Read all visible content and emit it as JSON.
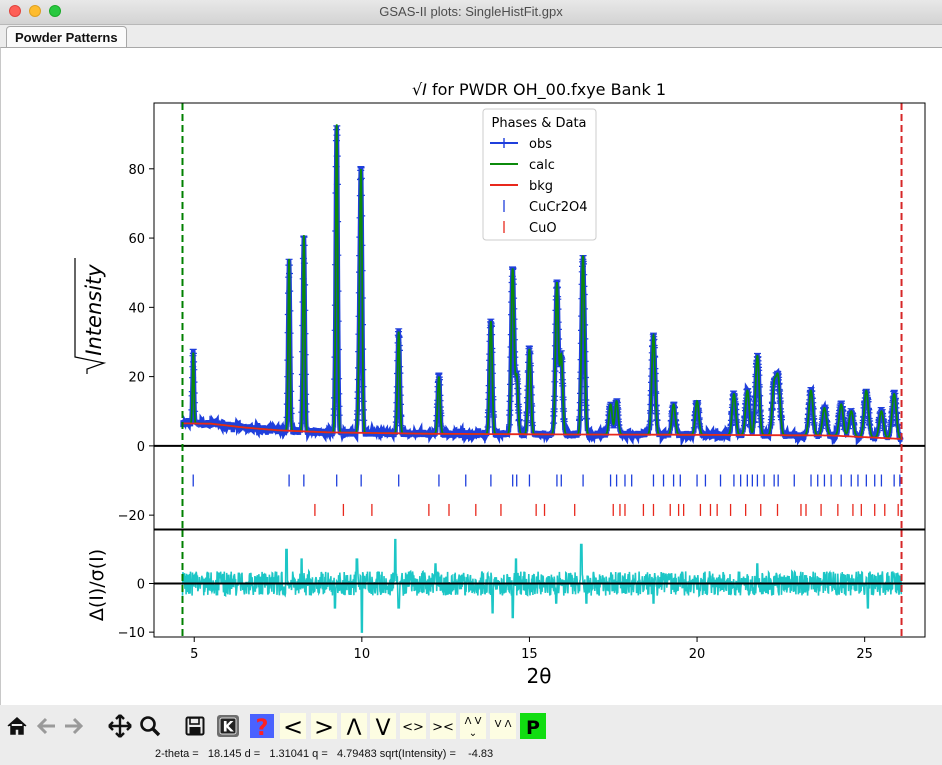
{
  "window": {
    "title": "GSAS-II plots: SingleHistFit.gpx"
  },
  "tabs": [
    {
      "label": "Powder Patterns"
    }
  ],
  "chart_data": {
    "type": "line",
    "title_prefix": "√I",
    "title_suffix": " for PWDR OH_00.fxye Bank 1",
    "xlabel": "2θ",
    "ylabel_main": "Intensity",
    "ylabel_diff": "Δ(I)/σ(I)",
    "xlim": [
      3.8,
      26.8
    ],
    "ylim_main": [
      -24,
      99
    ],
    "ylim_diff": [
      -11,
      11
    ],
    "x_ticks": [
      5,
      10,
      15,
      20,
      25
    ],
    "y_ticks_main": [
      -20,
      0,
      20,
      40,
      60,
      80
    ],
    "y_ticks_diff": [
      -10,
      0
    ],
    "limit_lines": [
      {
        "x": 4.65,
        "color": "#008000"
      },
      {
        "x": 26.1,
        "color": "#d62728"
      }
    ],
    "legend": {
      "title": "Phases & Data",
      "position": "top-center",
      "items": [
        {
          "label": "obs",
          "color": "#1f3fdc",
          "style": "line-marker"
        },
        {
          "label": "calc",
          "color": "#0b8a0b",
          "style": "line"
        },
        {
          "label": "bkg",
          "color": "#e8281c",
          "style": "line"
        },
        {
          "label": "CuCr2O4",
          "color": "#1f3fdc",
          "style": "tick"
        },
        {
          "label": "CuO",
          "color": "#e8281c",
          "style": "tick"
        }
      ]
    },
    "background": {
      "x": [
        4.65,
        5.5,
        6.5,
        7.5,
        9,
        12,
        16,
        20,
        24,
        26.1
      ],
      "y": [
        6.5,
        6.4,
        5.3,
        4.5,
        3.9,
        3.5,
        3.3,
        3.2,
        3.0,
        2.0
      ]
    },
    "peaks": [
      {
        "x": 4.97,
        "h": 27
      },
      {
        "x": 7.83,
        "h": 54
      },
      {
        "x": 8.27,
        "h": 61
      },
      {
        "x": 9.25,
        "h": 93
      },
      {
        "x": 9.98,
        "h": 71
      },
      {
        "x": 9.93,
        "h": 30
      },
      {
        "x": 11.1,
        "h": 33
      },
      {
        "x": 12.3,
        "h": 20
      },
      {
        "x": 13.85,
        "h": 36
      },
      {
        "x": 14.5,
        "h": 51
      },
      {
        "x": 14.62,
        "h": 20
      },
      {
        "x": 15.0,
        "h": 28
      },
      {
        "x": 15.82,
        "h": 47
      },
      {
        "x": 15.95,
        "h": 26
      },
      {
        "x": 16.6,
        "h": 55
      },
      {
        "x": 17.42,
        "h": 12
      },
      {
        "x": 17.6,
        "h": 13
      },
      {
        "x": 18.7,
        "h": 32
      },
      {
        "x": 19.3,
        "h": 12
      },
      {
        "x": 20.0,
        "h": 13
      },
      {
        "x": 21.1,
        "h": 15
      },
      {
        "x": 21.5,
        "h": 16
      },
      {
        "x": 21.8,
        "h": 26
      },
      {
        "x": 22.3,
        "h": 17
      },
      {
        "x": 22.42,
        "h": 19
      },
      {
        "x": 23.4,
        "h": 16
      },
      {
        "x": 23.8,
        "h": 11
      },
      {
        "x": 24.3,
        "h": 12
      },
      {
        "x": 24.6,
        "h": 10
      },
      {
        "x": 25.05,
        "h": 16
      },
      {
        "x": 25.5,
        "h": 10
      },
      {
        "x": 25.88,
        "h": 15
      }
    ],
    "reflections": [
      {
        "phase": "CuCr2O4",
        "y": -10,
        "color": "#1f3fdc",
        "x": [
          4.97,
          7.83,
          8.27,
          9.25,
          9.98,
          11.1,
          12.3,
          13.1,
          13.85,
          14.5,
          14.62,
          15.0,
          15.82,
          15.95,
          16.6,
          17.42,
          17.6,
          17.85,
          18.05,
          18.7,
          19.0,
          19.3,
          19.5,
          20.0,
          20.25,
          20.7,
          21.1,
          21.3,
          21.5,
          21.65,
          21.8,
          22.0,
          22.3,
          22.42,
          22.9,
          23.4,
          23.6,
          23.8,
          24.0,
          24.3,
          24.6,
          24.8,
          25.05,
          25.3,
          25.5,
          25.88,
          26.05
        ]
      },
      {
        "phase": "CuO",
        "y": -18.5,
        "color": "#e8281c",
        "x": [
          8.6,
          9.45,
          10.3,
          12.0,
          12.6,
          13.4,
          14.15,
          15.2,
          15.45,
          16.35,
          17.5,
          17.7,
          17.85,
          18.4,
          18.7,
          19.2,
          19.45,
          19.6,
          20.1,
          20.4,
          20.6,
          21.0,
          21.45,
          21.9,
          22.4,
          23.1,
          23.25,
          23.7,
          24.2,
          24.65,
          24.9,
          25.3,
          25.6,
          26.0
        ]
      }
    ],
    "diff_spikes": [
      {
        "x": 7.75,
        "v": 7
      },
      {
        "x": 8.2,
        "v": 5
      },
      {
        "x": 9.2,
        "v": -5
      },
      {
        "x": 9.85,
        "v": 5
      },
      {
        "x": 10.0,
        "v": -10
      },
      {
        "x": 11.0,
        "v": 9
      },
      {
        "x": 11.1,
        "v": -5
      },
      {
        "x": 12.2,
        "v": 4
      },
      {
        "x": 13.9,
        "v": -6
      },
      {
        "x": 14.5,
        "v": -7
      },
      {
        "x": 14.6,
        "v": 5
      },
      {
        "x": 15.8,
        "v": -4
      },
      {
        "x": 16.55,
        "v": 8
      },
      {
        "x": 16.7,
        "v": -4
      },
      {
        "x": 18.7,
        "v": -4
      },
      {
        "x": 21.8,
        "v": 4
      },
      {
        "x": 25.1,
        "v": -5
      }
    ]
  },
  "toolbar": {
    "icons": [
      {
        "name": "home-icon"
      },
      {
        "name": "back-icon"
      },
      {
        "name": "forward-icon"
      },
      {
        "name": "pan-icon"
      },
      {
        "name": "zoom-icon"
      },
      {
        "name": "save-icon"
      },
      {
        "name": "key-icon",
        "label": "K"
      },
      {
        "name": "help-icon",
        "label": "?"
      },
      {
        "name": "shift-left-icon",
        "label": "<"
      },
      {
        "name": "shift-right-icon",
        "label": ">"
      },
      {
        "name": "shift-up-icon",
        "label": "Λ"
      },
      {
        "name": "shift-down-icon",
        "label": "V"
      },
      {
        "name": "expand-x-icon",
        "label": "<>"
      },
      {
        "name": "contract-x-icon",
        "label": "><"
      },
      {
        "name": "expand-y-icon",
        "label": "Λ V"
      },
      {
        "name": "contract-y-icon",
        "label": "V Λ"
      },
      {
        "name": "publish-icon",
        "label": "P"
      }
    ]
  },
  "status": {
    "text": "2-theta =   18.145 d =   1.31041 q =   4.79483 sqrt(Intensity) =    -4.83"
  }
}
